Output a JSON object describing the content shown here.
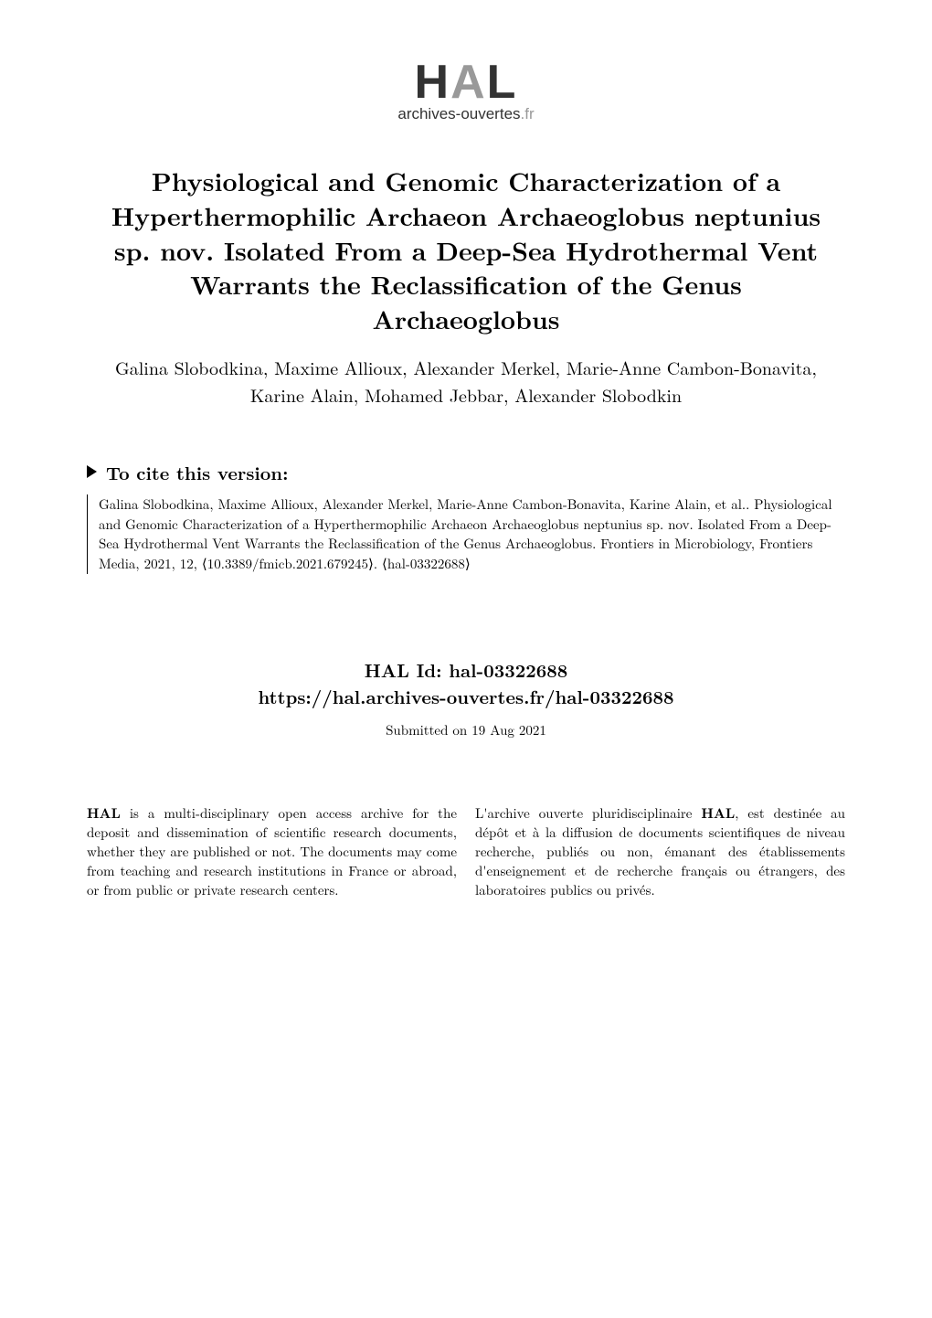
{
  "logo": {
    "text_hal": "HAL",
    "subtitle_prefix": "archives-ouvertes",
    "subtitle_suffix": ".fr"
  },
  "paper": {
    "title": "Physiological and Genomic Characterization of a Hyperthermophilic Archaeon Archaeoglobus neptunius sp. nov. Isolated From a Deep-Sea Hydrothermal Vent Warrants the Reclassification of the Genus Archaeoglobus",
    "authors": "Galina Slobodkina, Maxime Allioux, Alexander Merkel, Marie-Anne Cambon-Bonavita, Karine Alain, Mohamed Jebbar, Alexander Slobodkin"
  },
  "cite": {
    "header": "To cite this version:",
    "text": "Galina Slobodkina, Maxime Allioux, Alexander Merkel, Marie-Anne Cambon-Bonavita, Karine Alain, et al.. Physiological and Genomic Characterization of a Hyperthermophilic Archaeon Archaeoglobus neptunius sp. nov. Isolated From a Deep-Sea Hydrothermal Vent Warrants the Reclassification of the Genus Archaeoglobus. Frontiers in Microbiology, Frontiers Media, 2021, 12, ⟨10.3389/fmicb.2021.679245⟩. ⟨hal-03322688⟩"
  },
  "hal": {
    "id_label": "HAL Id: hal-03322688",
    "url": "https://hal.archives-ouvertes.fr/hal-03322688",
    "submitted": "Submitted on 19 Aug 2021"
  },
  "description": {
    "left": "HAL is a multi-disciplinary open access archive for the deposit and dissemination of scientific research documents, whether they are published or not. The documents may come from teaching and research institutions in France or abroad, or from public or private research centers.",
    "right": "L'archive ouverte pluridisciplinaire HAL, est destinée au dépôt et à la diffusion de documents scientifiques de niveau recherche, publiés ou non, émanant des établissements d'enseignement et de recherche français ou étrangers, des laboratoires publics ou privés."
  },
  "styling": {
    "background_color": "#ffffff",
    "text_color": "#000000",
    "title_fontsize": 28,
    "authors_fontsize": 20,
    "cite_header_fontsize": 20,
    "cite_text_fontsize": 15,
    "hal_id_fontsize": 20,
    "submitted_fontsize": 15,
    "column_fontsize": 15,
    "logo_hal_fontsize": 52,
    "logo_subtitle_fontsize": 17,
    "logo_grey": "#999999",
    "logo_dark": "#333333",
    "font_family": "Latin Modern Roman"
  }
}
